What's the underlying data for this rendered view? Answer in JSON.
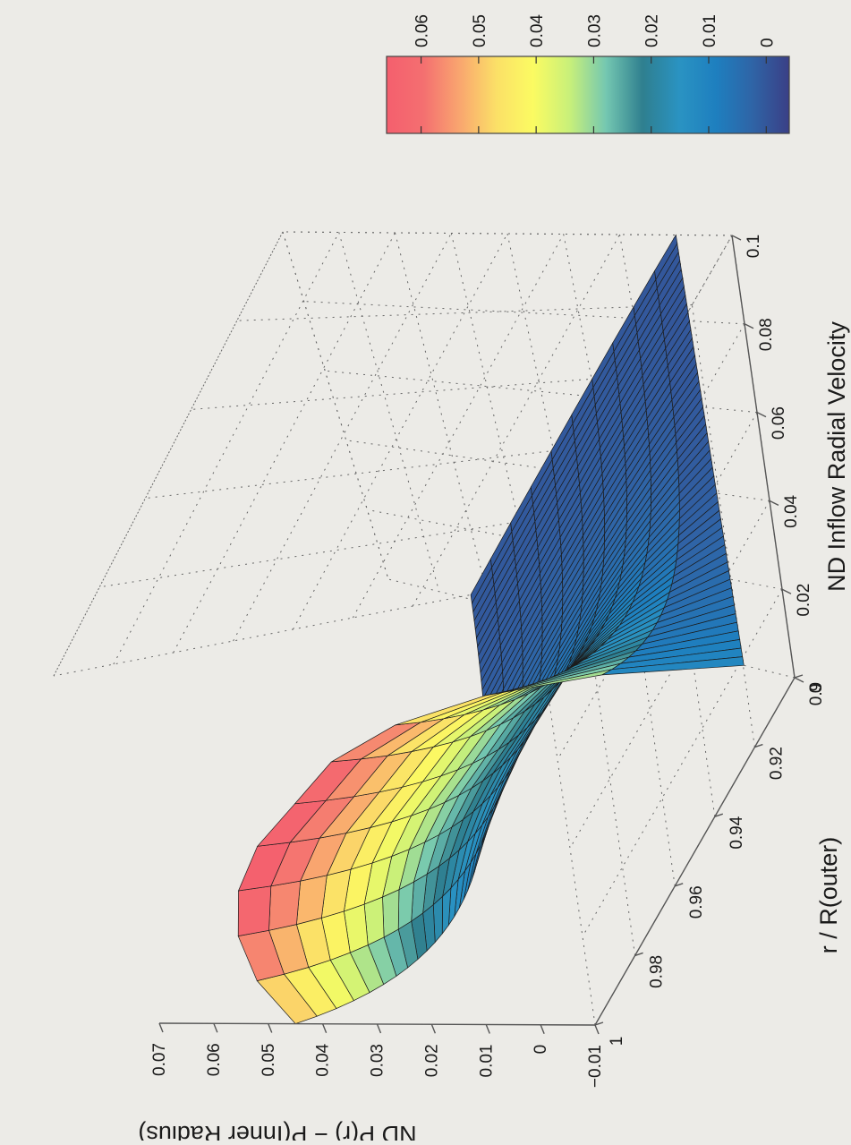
{
  "chart_data": {
    "type": "surface",
    "title": "",
    "colorbar": {
      "label": "ND Inflow Radial Velocity",
      "ticks": [
        "0",
        "0.01",
        "0.02",
        "0.03",
        "0.04",
        "0.05",
        "0.06"
      ],
      "range": [
        -0.004,
        0.066
      ],
      "colormap": [
        "#3a3f86",
        "#2f64a6",
        "#1e7fbf",
        "#2a93c2",
        "#2f7f8f",
        "#74c7b1",
        "#c8f07a",
        "#fbfb62",
        "#fbe067",
        "#f9a66f",
        "#f46f70",
        "#f45f6e"
      ]
    },
    "x_axis": {
      "label": "r / R(outer)",
      "ticks": [
        "0.9",
        "0.92",
        "0.94",
        "0.96",
        "0.98",
        "1"
      ],
      "range": [
        0.9,
        1.0
      ]
    },
    "y_axis": {
      "ticks": [
        "0",
        "0.02",
        "0.04",
        "0.06",
        "0.08",
        "0.1"
      ],
      "range": [
        0,
        0.1
      ]
    },
    "z_axis": {
      "label": "ND P(r) − P(Inner Radius)",
      "ticks": [
        "−0.01",
        "0",
        "0.01",
        "0.02",
        "0.03",
        "0.04",
        "0.05",
        "0.06",
        "0.07"
      ],
      "range": [
        -0.01,
        0.07
      ]
    },
    "surface": {
      "description_values": {
        "z_at_r1_v0": 0.045,
        "z_at_r1_v01": 0.0,
        "z_at_r09_v0": 0.0,
        "peak_z": 0.066
      },
      "r_samples": 11,
      "v_samples": 50
    },
    "grid": true,
    "rotated": "90deg-counterclockwise"
  }
}
